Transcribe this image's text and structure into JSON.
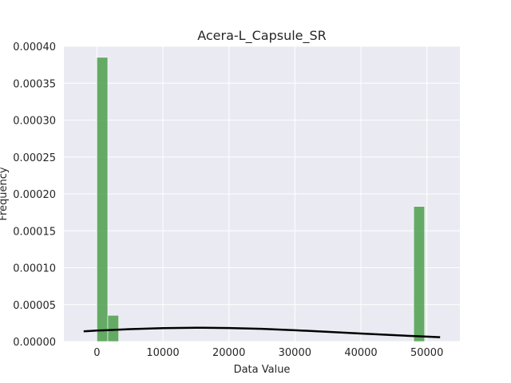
{
  "chart_data": {
    "type": "histogram",
    "title": "Acera-L_Capsule_SR",
    "xlabel": "Data Value",
    "ylabel": "Frequency",
    "xlim": [
      -5000,
      55000
    ],
    "ylim": [
      0,
      0.0004
    ],
    "xticks": [
      0,
      10000,
      20000,
      30000,
      40000,
      50000
    ],
    "xtick_labels": [
      "0",
      "10000",
      "20000",
      "30000",
      "40000",
      "50000"
    ],
    "yticks": [
      0,
      5e-05,
      0.0001,
      0.00015,
      0.0002,
      0.00025,
      0.0003,
      0.00035,
      0.0004
    ],
    "ytick_labels": [
      "0.00000",
      "0.00005",
      "0.00010",
      "0.00015",
      "0.00020",
      "0.00025",
      "0.00030",
      "0.00035",
      "0.00040"
    ],
    "grid": true,
    "bar_color": "#4c9f4c",
    "bins": [
      {
        "x0": 0,
        "x1": 1650,
        "value": 0.000385
      },
      {
        "x0": 1650,
        "x1": 3300,
        "value": 3.55e-05
      },
      {
        "x0": 48000,
        "x1": 49650,
        "value": 0.000183
      }
    ],
    "kde": {
      "color": "#000000",
      "points": [
        [
          -2000,
          1.38e-05
        ],
        [
          0,
          1.48e-05
        ],
        [
          5000,
          1.67e-05
        ],
        [
          10000,
          1.81e-05
        ],
        [
          15000,
          1.87e-05
        ],
        [
          20000,
          1.83e-05
        ],
        [
          25000,
          1.71e-05
        ],
        [
          30000,
          1.53e-05
        ],
        [
          35000,
          1.31e-05
        ],
        [
          40000,
          1.08e-05
        ],
        [
          45000,
          8.6e-06
        ],
        [
          50000,
          6.6e-06
        ],
        [
          52000,
          5.8e-06
        ]
      ]
    },
    "colors": {
      "background": "#eaeaf2",
      "grid": "#ffffff",
      "text": "#262626"
    }
  }
}
